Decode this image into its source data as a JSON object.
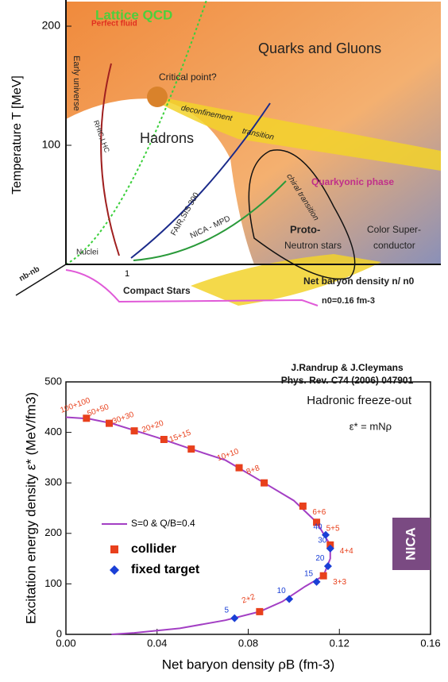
{
  "phase_diagram": {
    "y_label": "Temperature T [MeV]",
    "yticks": [
      100,
      200
    ],
    "x_tick": "1",
    "labels": [
      "Lattice QCD",
      "Early universe",
      "Perfect fluid",
      "Quarks and Gluons",
      "Critical point?",
      "deconfinement",
      "transition",
      "Hadrons",
      "RHIC,LHC",
      "FAIR,SIS 300",
      "chiral transition",
      "Quarkyonic phase",
      "NICA - MPD",
      "Proto-",
      "Neutron stars",
      "Color Super-",
      "conductor",
      "Nuclei",
      "nb-nb",
      "Compact Stars",
      "Net baryon density n/ n0",
      "n0=0.16 fm-3"
    ]
  },
  "chart_data": {
    "type": "scatter",
    "annotations": [
      "J.Randrup & J.Cleymans",
      "Phys. Rev. C74 (2006) 047901",
      "Hadronic freeze-out",
      "ε* = mNρ",
      "NICA"
    ],
    "xlabel": "Net baryon density ρB (fm-3)",
    "ylabel": "Excitation energy density ε* (MeV/fm3)",
    "xlim": [
      0,
      0.16
    ],
    "xticks": [
      {
        "value": 0,
        "label": "0.00"
      },
      0.04,
      0.08,
      0.12,
      0.16
    ],
    "ylim": [
      0,
      500
    ],
    "yticks": [
      0,
      100,
      200,
      300,
      400,
      500
    ],
    "series": [
      {
        "name": "S=0 & Q/B=0.4",
        "color": "#a33fc4",
        "kind": "line",
        "x": [
          0,
          0.01,
          0.02,
          0.03,
          0.04,
          0.055,
          0.07,
          0.087,
          0.1,
          0.11,
          0.116,
          0.116,
          0.113,
          0.105,
          0.095,
          0.085,
          0.07,
          0.05,
          0.03,
          0.02
        ],
        "values": [
          430,
          427,
          418,
          404,
          390,
          367,
          345,
          300,
          265,
          222,
          177,
          150,
          116,
          95,
          65,
          45,
          28,
          12,
          3,
          0
        ]
      },
      {
        "name": "collider",
        "color": "#e8401c",
        "kind": "square",
        "x": [
          0.009,
          0.019,
          0.03,
          0.043,
          0.055,
          0.076,
          0.087,
          0.104,
          0.11,
          0.116,
          0.113,
          0.085
        ],
        "values": [
          428,
          418,
          403,
          386,
          367,
          330,
          300,
          254,
          222,
          177,
          116,
          45
        ],
        "point_labels": [
          "100+100",
          "50+50",
          "30+30",
          "20+20",
          "15+15",
          "10+10",
          "8+8",
          "6+6",
          "5+5",
          "4+4",
          "3+3",
          "2+2"
        ]
      },
      {
        "name": "fixed target",
        "color": "#1a3fd6",
        "kind": "diamond",
        "x": [
          0.114,
          0.116,
          0.115,
          0.11,
          0.098,
          0.074
        ],
        "values": [
          197,
          170,
          135,
          104,
          70,
          32
        ],
        "point_labels": [
          "40",
          "30",
          "20",
          "15",
          "10",
          "5"
        ]
      }
    ]
  }
}
